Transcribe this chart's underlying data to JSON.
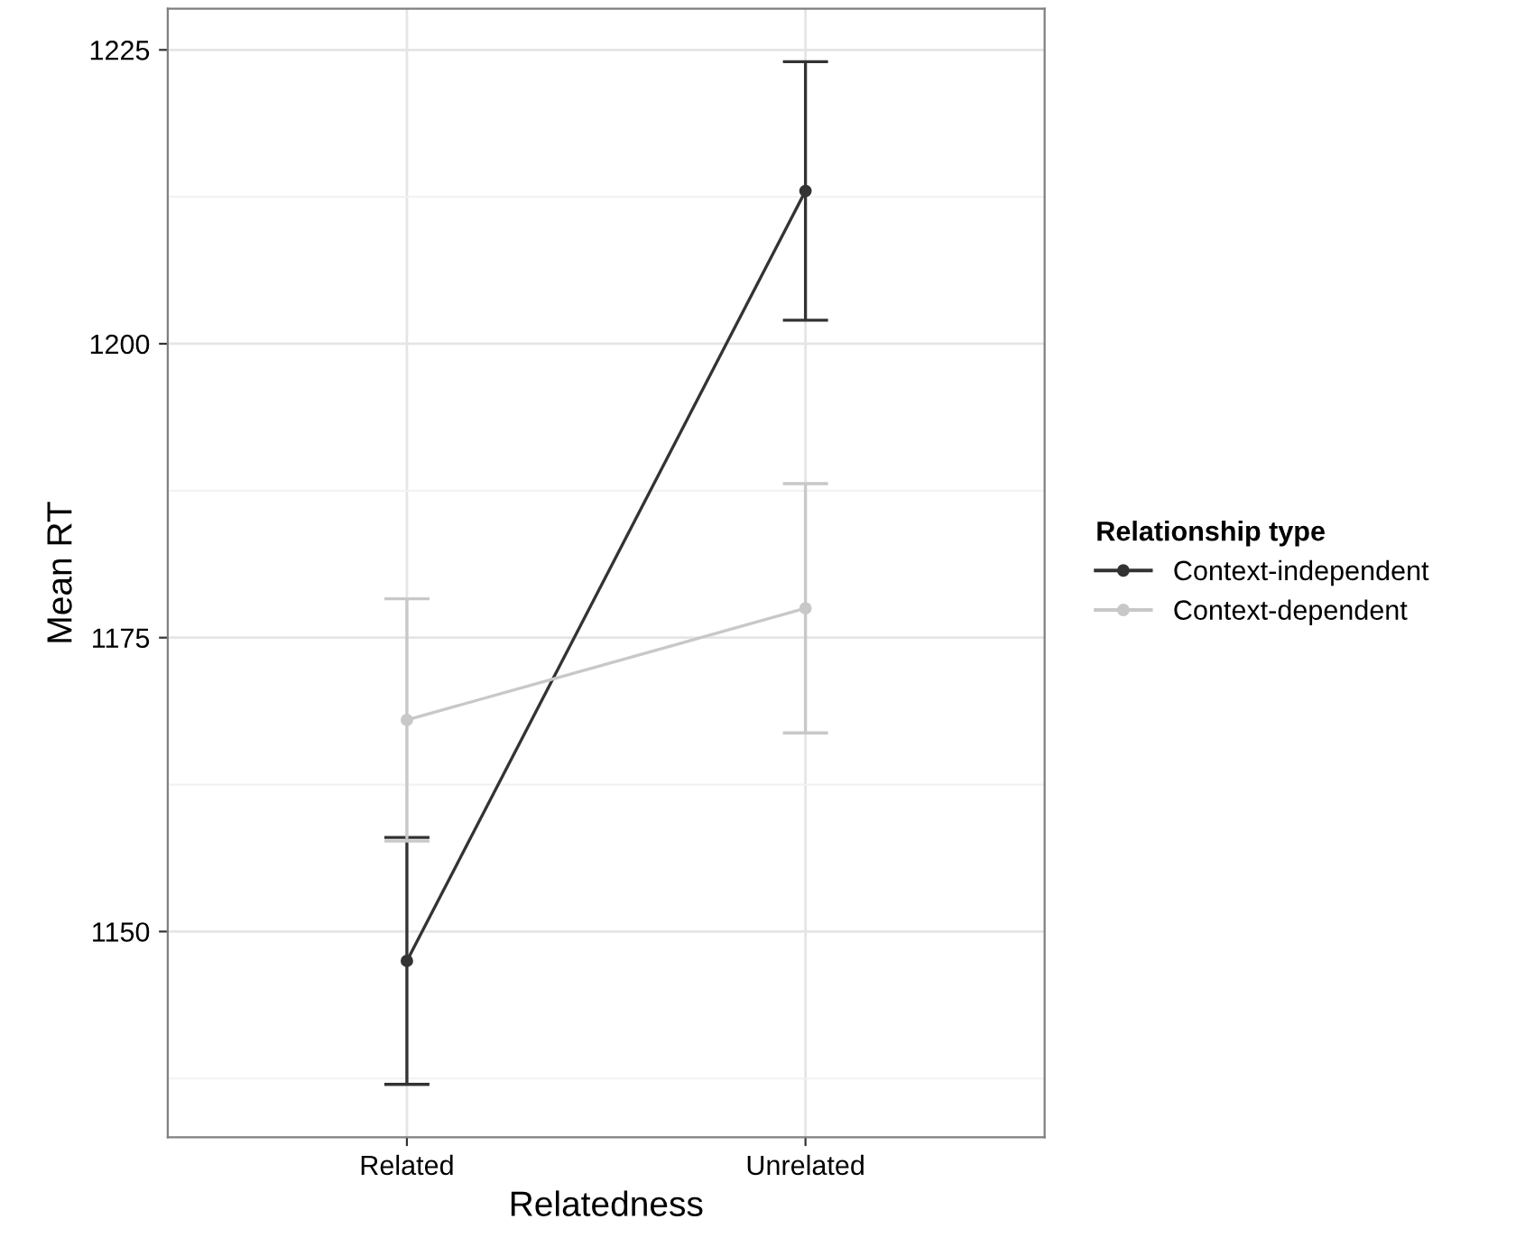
{
  "chart_data": {
    "type": "line",
    "xlabel": "Relatedness",
    "ylabel": "Mean RT",
    "legend_title": "Relationship type",
    "categories": [
      "Related",
      "Unrelated"
    ],
    "series": [
      {
        "name": "Context-independent",
        "color": "#333333",
        "values": [
          1147.5,
          1213
        ],
        "errors": [
          10.5,
          11
        ]
      },
      {
        "name": "Context-dependent",
        "color": "#c8c8c8",
        "values": [
          1168,
          1177.5
        ],
        "errors": [
          10.3,
          10.6
        ]
      }
    ],
    "ylim": [
      1132.5,
      1228.5
    ],
    "yticks": [
      {
        "value": 1137.5,
        "label": null
      },
      1150,
      {
        "value": 1162.5,
        "label": null
      },
      1175,
      {
        "value": 1187.5,
        "label": null
      },
      1200,
      {
        "value": 1212.5,
        "label": null
      },
      1225
    ],
    "grid": true,
    "legend": "right",
    "marker": "circle",
    "line_style": "solid"
  }
}
